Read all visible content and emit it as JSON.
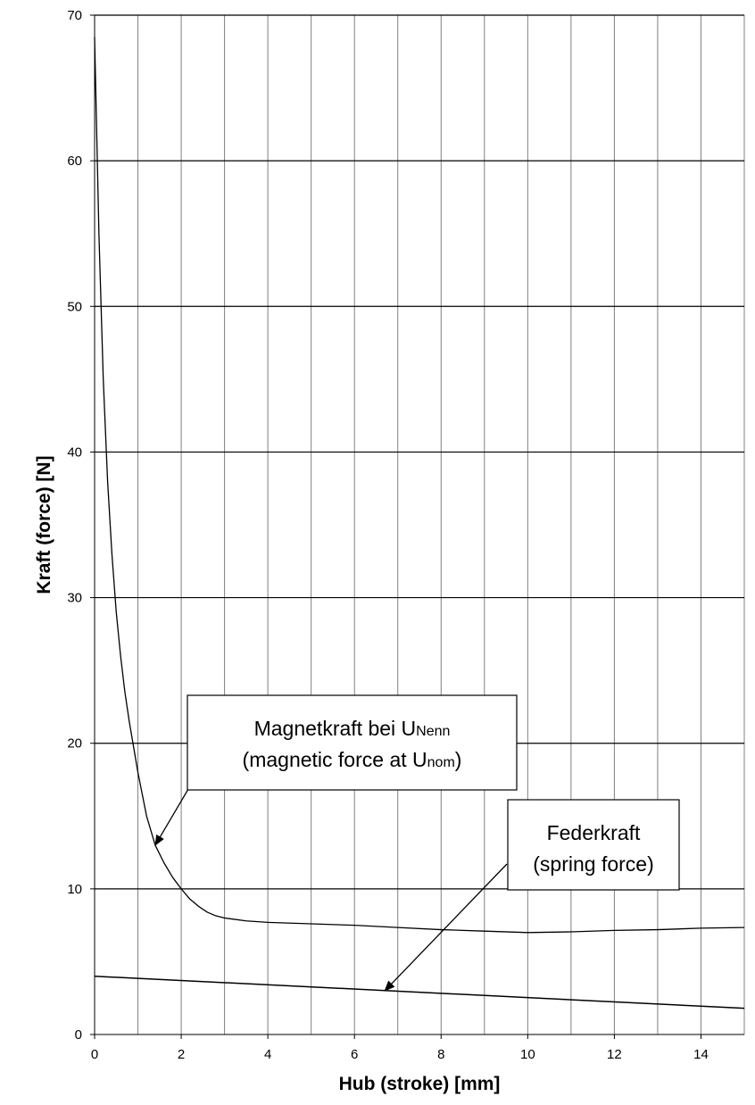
{
  "chart_data": {
    "type": "line",
    "xlabel": "Hub (stroke) [mm]",
    "ylabel": "Kraft (force) [N]",
    "xlim": [
      0,
      15
    ],
    "ylim": [
      0,
      70
    ],
    "x_ticks": [
      "0",
      "2",
      "4",
      "6",
      "8",
      "10",
      "12",
      "14"
    ],
    "y_ticks": [
      "0",
      "10",
      "20",
      "30",
      "40",
      "50",
      "60",
      "70"
    ],
    "grid": true,
    "series": [
      {
        "name": "Magnetkraft bei UNenn (magnetic force at Unom)",
        "color": "#000000",
        "points": [
          [
            0.0,
            68.5
          ],
          [
            0.1,
            55.0
          ],
          [
            0.2,
            45.0
          ],
          [
            0.3,
            38.0
          ],
          [
            0.4,
            33.0
          ],
          [
            0.5,
            29.0
          ],
          [
            0.6,
            26.0
          ],
          [
            0.7,
            23.5
          ],
          [
            0.8,
            21.5
          ],
          [
            1.0,
            18.0
          ],
          [
            1.2,
            15.0
          ],
          [
            1.4,
            13.0
          ],
          [
            1.6,
            11.8
          ],
          [
            1.8,
            10.8
          ],
          [
            2.0,
            10.0
          ],
          [
            2.2,
            9.3
          ],
          [
            2.4,
            8.8
          ],
          [
            2.6,
            8.4
          ],
          [
            2.8,
            8.15
          ],
          [
            3.0,
            8.0
          ],
          [
            3.5,
            7.8
          ],
          [
            4.0,
            7.7
          ],
          [
            5.0,
            7.6
          ],
          [
            6.0,
            7.5
          ],
          [
            7.0,
            7.35
          ],
          [
            8.0,
            7.2
          ],
          [
            9.0,
            7.1
          ],
          [
            10.0,
            7.0
          ],
          [
            11.0,
            7.05
          ],
          [
            12.0,
            7.15
          ],
          [
            13.0,
            7.2
          ],
          [
            14.0,
            7.3
          ],
          [
            15.0,
            7.35
          ]
        ]
      },
      {
        "name": "Federkraft (spring force)",
        "color": "#000000",
        "points": [
          [
            0.0,
            4.0
          ],
          [
            15.0,
            1.8
          ]
        ]
      }
    ],
    "annotations": [
      {
        "lines": [
          {
            "text": "Magnetkraft bei U",
            "sub": "Nenn"
          },
          {
            "text": "(magnetic force at U",
            "sub": "nom",
            "suffix": ")"
          }
        ],
        "target": [
          1.4,
          13.0
        ]
      },
      {
        "lines": [
          {
            "text": "Federkraft",
            "sub": "",
            "suffix": ""
          },
          {
            "text": "(spring force)",
            "sub": "",
            "suffix": ""
          }
        ],
        "target": [
          6.7,
          3.0
        ]
      }
    ]
  }
}
